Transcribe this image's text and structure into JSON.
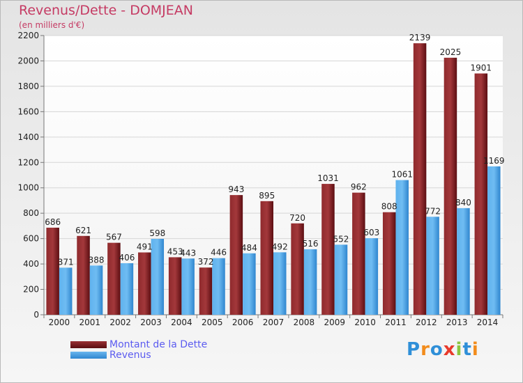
{
  "title": "Revenus/Dette - DOMJEAN",
  "subtitle": "(en milliers d'€)",
  "logo": {
    "text": "Proxiti",
    "colors": [
      "#2f8fd8",
      "#f28c1c",
      "#2f8fd8",
      "#e83a2b",
      "#8cc63f",
      "#2f8fd8",
      "#f28c1c"
    ]
  },
  "colors": {
    "dette": "#6e1418",
    "revenus": "#3d9ae3",
    "title": "#c53a63",
    "legend_text": "#5b5bf0"
  },
  "chart_data": {
    "type": "bar",
    "title": "Revenus/Dette - DOMJEAN",
    "ylabel": "(en milliers d'€)",
    "xlabel": "",
    "ylim": [
      0,
      2200
    ],
    "yticks": [
      0,
      200,
      400,
      600,
      800,
      1000,
      1200,
      1400,
      1600,
      1800,
      2000,
      2200
    ],
    "grid": true,
    "legend_position": "bottom-left",
    "categories": [
      "2000",
      "2001",
      "2002",
      "2003",
      "2004",
      "2005",
      "2006",
      "2007",
      "2008",
      "2009",
      "2010",
      "2011",
      "2012",
      "2013",
      "2014"
    ],
    "series": [
      {
        "name": "Montant de la Dette",
        "values": [
          686,
          621,
          567,
          491,
          453,
          372,
          943,
          895,
          720,
          1031,
          962,
          808,
          2139,
          2025,
          1901
        ]
      },
      {
        "name": "Revenus",
        "values": [
          371,
          388,
          406,
          598,
          443,
          446,
          484,
          492,
          516,
          552,
          603,
          1061,
          772,
          840,
          1169
        ]
      }
    ]
  }
}
